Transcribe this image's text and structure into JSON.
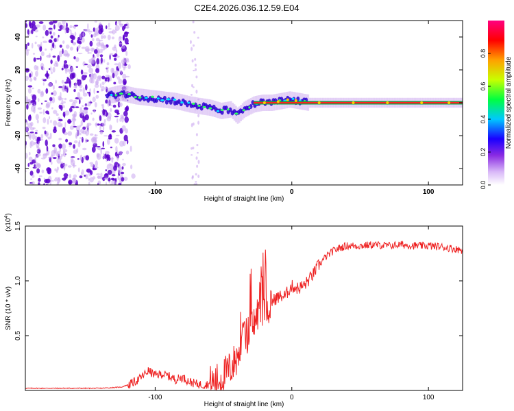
{
  "title": "C2E4.2026.036.12.59.E04",
  "colors": {
    "snr_line": "#ee2222",
    "dark_purple": "#5a00cc",
    "light_purple": "#cba8f0",
    "green_line": "#00aa44",
    "axis": "#000000"
  },
  "chart_data": [
    {
      "id": "spectrogram",
      "type": "heatmap",
      "xlabel": "Height of straight line (km)",
      "ylabel": "Frequency (Hz)",
      "xlim": [
        -195,
        125
      ],
      "ylim": [
        -50,
        50
      ],
      "xticks": [
        -100,
        0,
        100
      ],
      "yticks": [
        -40,
        -20,
        0,
        20,
        40
      ],
      "colorbar": {
        "label": "Normalized spectral amplitude",
        "ticks": [
          0.0,
          0.2,
          0.4,
          0.6,
          0.8
        ],
        "range": [
          0,
          1
        ],
        "colormap": [
          "#ffffff",
          "#d8b8f8",
          "#8a2be2",
          "#1a00ff",
          "#00c8ff",
          "#00ff40",
          "#c8ff00",
          "#ffa000",
          "#ff0000",
          "#ff0080"
        ]
      },
      "signal_track": {
        "x": [
          -135,
          -125,
          -115,
          -105,
          -95,
          -85,
          -75,
          -68,
          -60,
          -52,
          -45,
          -40,
          -35,
          -28,
          -22,
          -15,
          -8,
          -2,
          5,
          12,
          30,
          60,
          90,
          125
        ],
        "y": [
          4,
          6,
          4,
          3,
          2,
          1,
          -1,
          -2,
          -3,
          -5,
          -4,
          -8,
          -4,
          -1,
          0,
          0,
          1,
          2,
          1,
          0,
          0,
          0,
          0,
          0
        ]
      },
      "noise_region_x": [
        -195,
        -120
      ]
    },
    {
      "id": "snr",
      "type": "line",
      "xlabel": "Height of straight line (km)",
      "ylabel": "SNR (10 * v/v)",
      "scale_label": "(x10",
      "scale_exponent": "4",
      "scale_close": ")",
      "xlim": [
        -195,
        125
      ],
      "ylim": [
        0,
        1.5
      ],
      "xticks": [
        -100,
        0,
        100
      ],
      "yticks": [
        0.5,
        1.0,
        1.5
      ],
      "ytick_labels": [
        "0.5",
        "1.0",
        "1.5"
      ],
      "series": [
        {
          "name": "SNR",
          "x": [
            -195,
            -170,
            -140,
            -125,
            -118,
            -112,
            -105,
            -100,
            -95,
            -90,
            -85,
            -80,
            -75,
            -70,
            -65,
            -60,
            -55,
            -50,
            -45,
            -40,
            -36,
            -32,
            -28,
            -25,
            -22,
            -20,
            -18,
            -15,
            -12,
            -8,
            -5,
            -2,
            0,
            5,
            10,
            15,
            20,
            25,
            30,
            35,
            40,
            50,
            60,
            70,
            80,
            90,
            100,
            110,
            125
          ],
          "values": [
            0.02,
            0.02,
            0.02,
            0.03,
            0.06,
            0.1,
            0.18,
            0.14,
            0.15,
            0.13,
            0.1,
            0.12,
            0.08,
            0.06,
            0.05,
            0.06,
            0.08,
            0.13,
            0.2,
            0.3,
            0.45,
            0.52,
            0.6,
            0.7,
            0.72,
            0.78,
            0.76,
            0.8,
            0.84,
            0.86,
            0.86,
            0.92,
            0.95,
            0.93,
            0.97,
            1.05,
            1.15,
            1.22,
            1.27,
            1.3,
            1.32,
            1.32,
            1.33,
            1.32,
            1.33,
            1.32,
            1.32,
            1.31,
            1.28
          ]
        }
      ]
    }
  ]
}
